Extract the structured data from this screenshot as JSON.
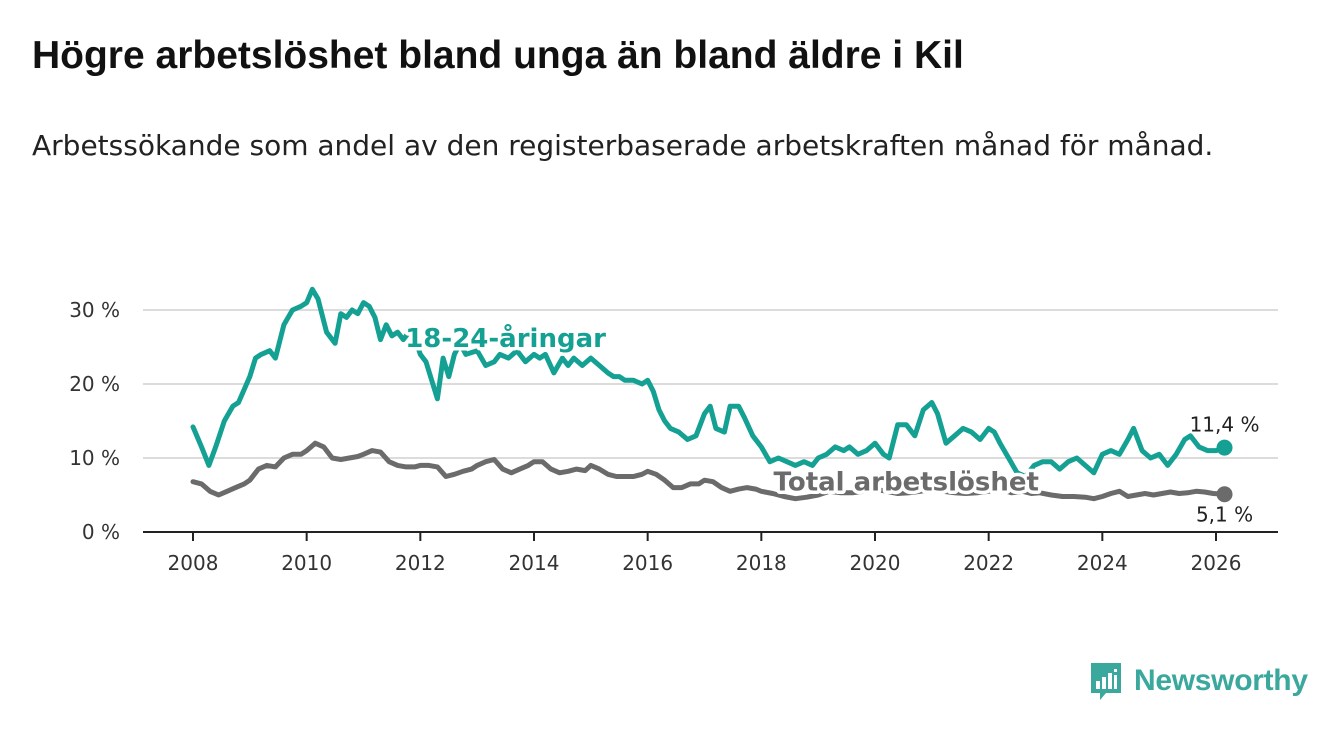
{
  "title": "Högre arbetslöshet bland unga än bland äldre i Kil",
  "subtitle": "Arbetssökande som andel av den registerbaserade arbetskraften månad för månad.",
  "brand": {
    "name": "Newsworthy",
    "icon": "bar-chart-icon",
    "color": "#3aa89c"
  },
  "chart_data": {
    "type": "line",
    "ylim": [
      0,
      34
    ],
    "xlim": [
      2007.5,
      2027.0
    ],
    "yticks": [
      0,
      10,
      20,
      30
    ],
    "ytick_labels": [
      "0 %",
      "10 %",
      "20 %",
      "30 %"
    ],
    "xticks": [
      2008,
      2010,
      2012,
      2014,
      2016,
      2018,
      2020,
      2022,
      2024,
      2026
    ],
    "xtick_labels": [
      "2008",
      "2010",
      "2012",
      "2014",
      "2016",
      "2018",
      "2020",
      "2022",
      "2024",
      "2026"
    ],
    "grid": true,
    "series": [
      {
        "name": "18-24-åringar",
        "color": "#14a093",
        "end_label": "11,4 %",
        "x": [
          2008.0,
          2008.15,
          2008.28,
          2008.4,
          2008.55,
          2008.7,
          2008.8,
          2009.0,
          2009.1,
          2009.2,
          2009.35,
          2009.45,
          2009.6,
          2009.75,
          2009.9,
          2010.0,
          2010.1,
          2010.2,
          2010.35,
          2010.5,
          2010.6,
          2010.7,
          2010.8,
          2010.9,
          2011.0,
          2011.1,
          2011.2,
          2011.3,
          2011.4,
          2011.5,
          2011.6,
          2011.7,
          2011.85,
          2012.0,
          2012.1,
          2012.2,
          2012.3,
          2012.4,
          2012.5,
          2012.6,
          2012.7,
          2012.8,
          2013.0,
          2013.15,
          2013.3,
          2013.4,
          2013.55,
          2013.7,
          2013.85,
          2014.0,
          2014.1,
          2014.2,
          2014.35,
          2014.5,
          2014.6,
          2014.7,
          2014.85,
          2015.0,
          2015.15,
          2015.3,
          2015.4,
          2015.5,
          2015.6,
          2015.75,
          2015.9,
          2016.0,
          2016.1,
          2016.2,
          2016.3,
          2016.4,
          2016.55,
          2016.7,
          2016.85,
          2017.0,
          2017.1,
          2017.2,
          2017.35,
          2017.45,
          2017.6,
          2017.7,
          2017.85,
          2018.0,
          2018.15,
          2018.3,
          2018.45,
          2018.6,
          2018.75,
          2018.9,
          2019.0,
          2019.15,
          2019.3,
          2019.45,
          2019.55,
          2019.7,
          2019.85,
          2020.0,
          2020.15,
          2020.25,
          2020.4,
          2020.55,
          2020.7,
          2020.85,
          2021.0,
          2021.1,
          2021.25,
          2021.4,
          2021.55,
          2021.7,
          2021.85,
          2022.0,
          2022.1,
          2022.2,
          2022.35,
          2022.5,
          2022.65,
          2022.8,
          2022.95,
          2023.1,
          2023.25,
          2023.4,
          2023.55,
          2023.7,
          2023.85,
          2024.0,
          2024.15,
          2024.3,
          2024.45,
          2024.55,
          2024.7,
          2024.85,
          2025.0,
          2025.15,
          2025.3,
          2025.45,
          2025.55,
          2025.7,
          2025.85,
          2026.0,
          2026.15
        ],
        "values": [
          14.2,
          11.5,
          9.0,
          11.5,
          15.0,
          17.0,
          17.5,
          21.0,
          23.5,
          24.0,
          24.5,
          23.5,
          28.0,
          30.0,
          30.5,
          31.0,
          32.8,
          31.5,
          27.0,
          25.5,
          29.5,
          29.0,
          30.0,
          29.5,
          31.0,
          30.5,
          29.0,
          26.0,
          28.0,
          26.5,
          27.0,
          26.0,
          27.5,
          24.0,
          23.0,
          20.5,
          18.0,
          23.5,
          21.0,
          24.0,
          25.5,
          24.0,
          24.5,
          22.5,
          23.0,
          24.0,
          23.5,
          24.5,
          23.0,
          24.0,
          23.5,
          24.0,
          21.5,
          23.5,
          22.5,
          23.5,
          22.5,
          23.5,
          22.5,
          21.5,
          21.0,
          21.0,
          20.5,
          20.5,
          20.0,
          20.5,
          19.0,
          16.5,
          15.0,
          14.0,
          13.5,
          12.5,
          13.0,
          16.0,
          17.0,
          14.0,
          13.5,
          17.0,
          17.0,
          15.5,
          13.0,
          11.5,
          9.5,
          10.0,
          9.5,
          9.0,
          9.5,
          9.0,
          10.0,
          10.5,
          11.5,
          11.0,
          11.5,
          10.5,
          11.0,
          12.0,
          10.5,
          10.0,
          14.5,
          14.5,
          13.0,
          16.5,
          17.5,
          16.0,
          12.0,
          13.0,
          14.0,
          13.5,
          12.5,
          14.0,
          13.5,
          12.0,
          10.0,
          8.0,
          7.5,
          9.0,
          9.5,
          9.5,
          8.5,
          9.5,
          10.0,
          9.0,
          8.0,
          10.5,
          11.0,
          10.5,
          12.5,
          14.0,
          11.0,
          10.0,
          10.5,
          9.0,
          10.5,
          12.5,
          13.0,
          11.5,
          11.0,
          11.0,
          11.4
        ]
      },
      {
        "name": "Total arbetslöshet",
        "color": "#6b6b6b",
        "end_label": "5,1 %",
        "x": [
          2008.0,
          2008.15,
          2008.3,
          2008.45,
          2008.6,
          2008.75,
          2008.9,
          2009.0,
          2009.15,
          2009.3,
          2009.45,
          2009.6,
          2009.75,
          2009.9,
          2010.0,
          2010.15,
          2010.3,
          2010.45,
          2010.6,
          2010.75,
          2010.9,
          2011.0,
          2011.15,
          2011.3,
          2011.45,
          2011.6,
          2011.75,
          2011.9,
          2012.0,
          2012.15,
          2012.3,
          2012.45,
          2012.6,
          2012.75,
          2012.9,
          2013.0,
          2013.15,
          2013.3,
          2013.45,
          2013.6,
          2013.75,
          2013.9,
          2014.0,
          2014.15,
          2014.3,
          2014.45,
          2014.6,
          2014.75,
          2014.9,
          2015.0,
          2015.15,
          2015.3,
          2015.45,
          2015.6,
          2015.75,
          2015.9,
          2016.0,
          2016.15,
          2016.3,
          2016.45,
          2016.6,
          2016.75,
          2016.9,
          2017.0,
          2017.15,
          2017.3,
          2017.45,
          2017.6,
          2017.75,
          2017.9,
          2018.0,
          2018.2,
          2018.4,
          2018.6,
          2018.8,
          2019.0,
          2019.2,
          2019.4,
          2019.6,
          2019.8,
          2020.0,
          2020.2,
          2020.4,
          2020.6,
          2020.8,
          2021.0,
          2021.2,
          2021.4,
          2021.6,
          2021.8,
          2022.0,
          2022.2,
          2022.4,
          2022.6,
          2022.75,
          2022.9,
          2023.1,
          2023.3,
          2023.5,
          2023.7,
          2023.85,
          2024.0,
          2024.15,
          2024.3,
          2024.45,
          2024.6,
          2024.75,
          2024.9,
          2025.05,
          2025.2,
          2025.35,
          2025.5,
          2025.65,
          2025.8,
          2025.95,
          2026.15
        ],
        "values": [
          6.8,
          6.5,
          5.5,
          5.0,
          5.5,
          6.0,
          6.5,
          7.0,
          8.5,
          9.0,
          8.8,
          10.0,
          10.5,
          10.5,
          11.0,
          12.0,
          11.5,
          10.0,
          9.8,
          10.0,
          10.2,
          10.5,
          11.0,
          10.8,
          9.5,
          9.0,
          8.8,
          8.8,
          9.0,
          9.0,
          8.8,
          7.5,
          7.8,
          8.2,
          8.5,
          9.0,
          9.5,
          9.8,
          8.5,
          8.0,
          8.5,
          9.0,
          9.5,
          9.5,
          8.5,
          8.0,
          8.2,
          8.5,
          8.3,
          9.0,
          8.5,
          7.8,
          7.5,
          7.5,
          7.5,
          7.8,
          8.2,
          7.8,
          7.0,
          6.0,
          6.0,
          6.5,
          6.5,
          7.0,
          6.8,
          6.0,
          5.5,
          5.8,
          6.0,
          5.8,
          5.5,
          5.2,
          4.8,
          4.5,
          4.7,
          5.0,
          5.5,
          5.3,
          5.3,
          5.5,
          5.8,
          5.5,
          5.2,
          5.3,
          5.5,
          5.8,
          5.5,
          5.3,
          5.2,
          5.3,
          5.5,
          5.8,
          5.3,
          5.5,
          5.2,
          5.3,
          5.0,
          4.8,
          4.8,
          4.7,
          4.5,
          4.8,
          5.2,
          5.5,
          4.8,
          5.0,
          5.2,
          5.0,
          5.2,
          5.4,
          5.2,
          5.3,
          5.5,
          5.4,
          5.2,
          5.1
        ]
      }
    ],
    "series_labels": [
      {
        "text": "18-24-åringar",
        "color": "#14a093",
        "at": [
          2013.5,
          25.0
        ]
      },
      {
        "text": "Total arbetslöshet",
        "color": "#6b6b6b",
        "at": [
          2020.55,
          5.6
        ]
      }
    ]
  }
}
